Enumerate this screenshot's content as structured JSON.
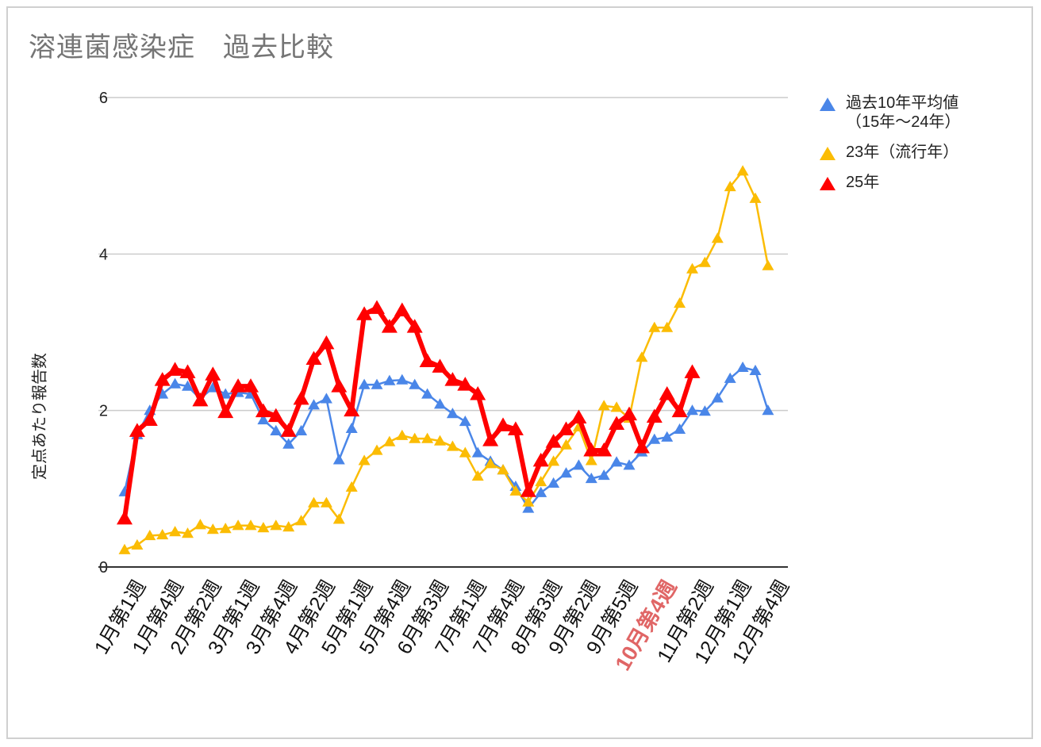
{
  "chart_data": {
    "type": "line",
    "title": "溶連菌感染症　過去比較",
    "xlabel": "",
    "ylabel": "定点あたり報告数",
    "ylim": [
      0,
      6
    ],
    "yticks": [
      0,
      2,
      4,
      6
    ],
    "grid": true,
    "legend_position": "right",
    "x_tick_labels": [
      "1月第1週",
      "1月第4週",
      "2月第2週",
      "3月第1週",
      "3月第4週",
      "4月第2週",
      "5月第1週",
      "5月第4週",
      "6月第3週",
      "7月第1週",
      "7月第4週",
      "8月第3週",
      "9月第2週",
      "9月第5週",
      "10月第4週",
      "11月第2週",
      "12月第1週",
      "12月第4週"
    ],
    "x_tick_every": 3,
    "highlighted_tick": "10月第4週",
    "highlight_color": "#e06666",
    "num_weeks": 52,
    "series": [
      {
        "name": "過去10年平均値\n（15年〜24年）",
        "color": "#4a86e8",
        "line_width": 2.5,
        "values": [
          0.96,
          1.69,
          2.0,
          2.21,
          2.34,
          2.31,
          2.15,
          2.29,
          2.21,
          2.23,
          2.21,
          1.88,
          1.74,
          1.57,
          1.74,
          2.07,
          2.15,
          1.37,
          1.77,
          2.33,
          2.33,
          2.38,
          2.39,
          2.33,
          2.21,
          2.08,
          1.96,
          1.86,
          1.46,
          1.35,
          1.24,
          1.03,
          0.75,
          0.95,
          1.07,
          1.2,
          1.3,
          1.13,
          1.17,
          1.34,
          1.3,
          1.47,
          1.63,
          1.66,
          1.76,
          2.0,
          1.99,
          2.16,
          2.41,
          2.55,
          2.51,
          2.0
        ]
      },
      {
        "name": "23年（流行年）",
        "color": "#fbbc04",
        "line_width": 2.5,
        "values": [
          0.22,
          0.28,
          0.4,
          0.41,
          0.45,
          0.43,
          0.54,
          0.48,
          0.49,
          0.53,
          0.53,
          0.5,
          0.53,
          0.51,
          0.59,
          0.82,
          0.82,
          0.61,
          1.02,
          1.36,
          1.49,
          1.6,
          1.68,
          1.64,
          1.64,
          1.61,
          1.54,
          1.46,
          1.16,
          1.32,
          1.24,
          0.97,
          0.83,
          1.09,
          1.35,
          1.56,
          1.79,
          1.36,
          2.06,
          2.04,
          1.9,
          2.68,
          3.06,
          3.06,
          3.37,
          3.81,
          3.89,
          4.2,
          4.86,
          5.06,
          4.71,
          3.85
        ]
      },
      {
        "name": "25年",
        "color": "#ff0000",
        "line_width": 6,
        "values": [
          0.62,
          1.74,
          1.88,
          2.39,
          2.52,
          2.49,
          2.13,
          2.46,
          1.98,
          2.31,
          2.31,
          1.99,
          1.93,
          1.74,
          2.15,
          2.66,
          2.86,
          2.31,
          2.0,
          3.23,
          3.31,
          3.07,
          3.28,
          3.07,
          2.63,
          2.56,
          2.39,
          2.33,
          2.21,
          1.62,
          1.81,
          1.76,
          0.97,
          1.36,
          1.6,
          1.76,
          1.91,
          1.49,
          1.49,
          1.83,
          1.95,
          1.53,
          1.92,
          2.21,
          1.99,
          2.49
        ]
      }
    ]
  },
  "legend": {
    "items": [
      {
        "label": "過去10年平均値\n（15年〜24年）",
        "color": "#4a86e8",
        "marker": "triangle-icon"
      },
      {
        "label": "23年（流行年）",
        "color": "#fbbc04",
        "marker": "triangle-icon"
      },
      {
        "label": "25年",
        "color": "#ff0000",
        "marker": "triangle-icon"
      }
    ]
  },
  "title": "溶連菌感染症　過去比較",
  "ylabel": "定点あたり報告数"
}
